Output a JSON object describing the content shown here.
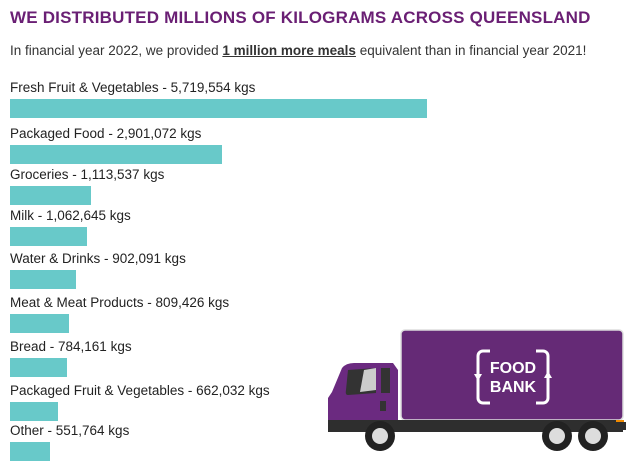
{
  "title": "WE DISTRIBUTED MILLIONS OF KILOGRAMS ACROSS QUEENSLAND",
  "subtitle": {
    "pre": "In financial year 2022, we provided ",
    "bold": "1 million more meals",
    "post": " equivalent than in financial year 2021!"
  },
  "logo_text": "FOOD BANK",
  "chart_data": {
    "type": "bar",
    "orientation": "horizontal",
    "title": "WE DISTRIBUTED MILLIONS OF KILOGRAMS ACROSS QUEENSLAND",
    "unit": "kgs",
    "bar_color": "#68c9c9",
    "categories": [
      "Fresh Fruit & Vegetables",
      "Packaged Food",
      "Groceries",
      "Milk",
      "Water & Drinks",
      "Meat & Meat Products",
      "Bread",
      "Packaged Fruit & Vegetables",
      "Other"
    ],
    "values": [
      5719554,
      2901072,
      1113537,
      1062645,
      902091,
      809426,
      784161,
      662032,
      551764
    ],
    "labels": [
      "Fresh Fruit & Vegetables - 5,719,554 kgs",
      "Packaged Food - 2,901,072 kgs",
      "Groceries - 1,113,537 kgs",
      "Milk - 1,062,645 kgs",
      "Water & Drinks - 902,091 kgs",
      "Meat & Meat Products - 809,426 kgs",
      "Bread - 784,161 kgs",
      "Packaged Fruit & Vegetables - 662,032 kgs",
      "Other - 551,764 kgs"
    ]
  }
}
